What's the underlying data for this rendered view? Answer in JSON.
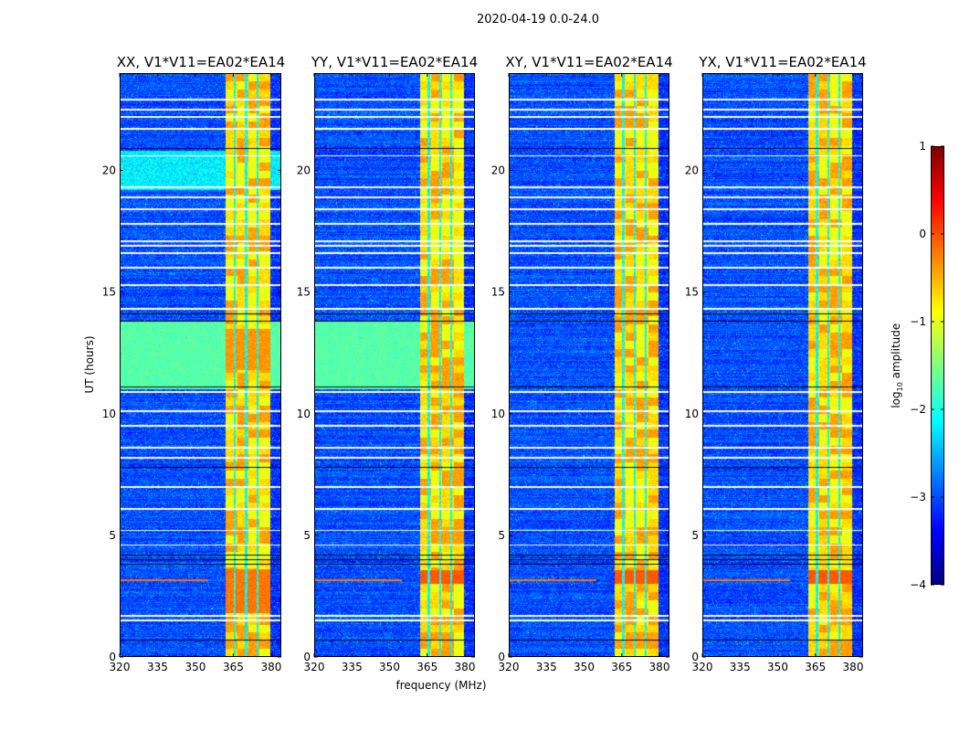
{
  "figure": {
    "suptitle": "2020-04-19 0.0-24.0",
    "xlabel": "frequency (MHz)",
    "ylabel": "UT (hours)",
    "colorbar_label_prefix": "log",
    "colorbar_label_sub": "10",
    "colorbar_label_suffix": " amplitude"
  },
  "chart_data": {
    "type": "heatmap",
    "title": "2020-04-19 0.0-24.0",
    "xlabel": "frequency (MHz)",
    "ylabel": "UT (hours)",
    "xlim": [
      320,
      384
    ],
    "ylim": [
      0,
      24
    ],
    "xticks": [
      320,
      335,
      350,
      365,
      380
    ],
    "yticks": [
      0,
      5,
      10,
      15,
      20
    ],
    "colormap": "jet",
    "colorbar": {
      "label": "log10 amplitude",
      "range": [
        -4,
        1
      ],
      "ticks": [
        1,
        0,
        -1,
        -2,
        -3,
        -4
      ]
    },
    "panels": [
      {
        "title": "XX, V1*V11=EA02*EA14",
        "pol": "XX"
      },
      {
        "title": "YY, V1*V11=EA02*EA14",
        "pol": "YY"
      },
      {
        "title": "XY, V1*V11=EA02*EA14",
        "pol": "XY"
      },
      {
        "title": "YX, V1*V11=EA02*EA14",
        "pol": "YX"
      }
    ],
    "background_log_amplitude": -3.0,
    "rfi_band_mhz": [
      362,
      379.5
    ],
    "rfi_band_log_amplitude": -0.9,
    "flagged_ut_hours": [
      1.5,
      1.7,
      4.6,
      5.2,
      6.1,
      7.0,
      8.2,
      8.6,
      9.5,
      10.1,
      10.9,
      14.3,
      15.3,
      16.0,
      16.6,
      16.9,
      17.1,
      17.8,
      18.4,
      18.9,
      19.3,
      20.6,
      21.7,
      22.2,
      22.5,
      22.9
    ],
    "dark_ut_hours": [
      0.7,
      3.8,
      4.0,
      4.2,
      7.8,
      11.1,
      13.8,
      14.1,
      20.9
    ]
  }
}
